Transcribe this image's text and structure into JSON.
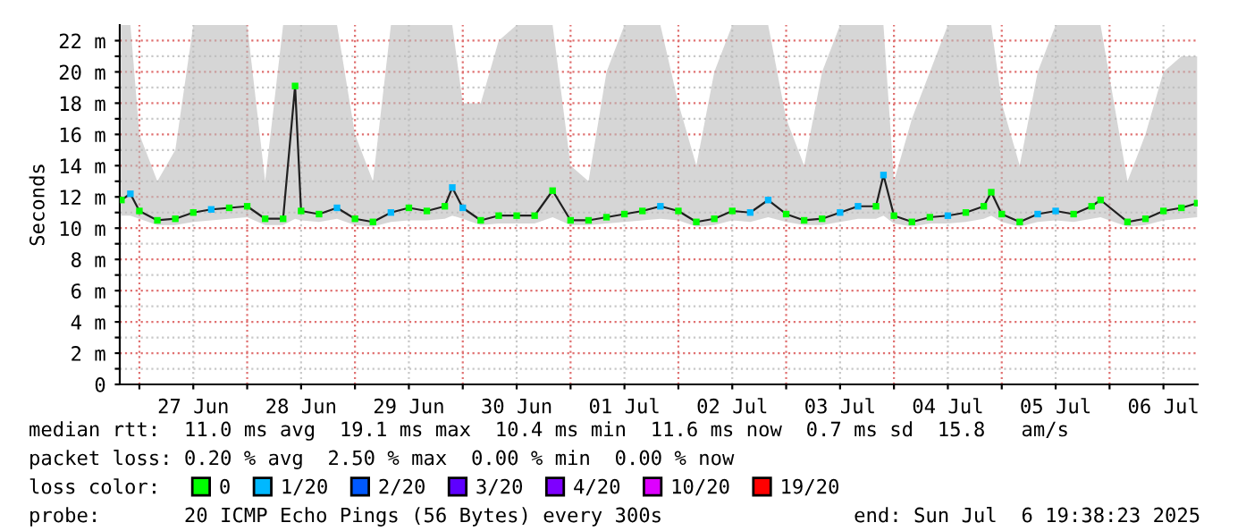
{
  "chart_data": {
    "type": "line",
    "ylabel": "Seconds",
    "x": [
      "2025-06-26T20:00",
      "2025-06-26T22:00",
      "2025-06-27T00:00",
      "2025-06-27T04:00",
      "2025-06-27T08:00",
      "2025-06-27T12:00",
      "2025-06-27T16:00",
      "2025-06-27T20:00",
      "2025-06-28T00:00",
      "2025-06-28T04:00",
      "2025-06-28T08:00",
      "2025-06-28T10:40",
      "2025-06-28T12:00",
      "2025-06-28T16:00",
      "2025-06-28T20:00",
      "2025-06-29T00:00",
      "2025-06-29T04:00",
      "2025-06-29T08:00",
      "2025-06-29T12:00",
      "2025-06-29T16:00",
      "2025-06-29T20:00",
      "2025-06-29T21:40",
      "2025-06-30T00:00",
      "2025-06-30T04:00",
      "2025-06-30T08:00",
      "2025-06-30T12:00",
      "2025-06-30T16:00",
      "2025-06-30T20:00",
      "2025-07-01T00:00",
      "2025-07-01T04:00",
      "2025-07-01T08:00",
      "2025-07-01T12:00",
      "2025-07-01T16:00",
      "2025-07-01T20:00",
      "2025-07-02T00:00",
      "2025-07-02T04:00",
      "2025-07-02T08:00",
      "2025-07-02T12:00",
      "2025-07-02T16:00",
      "2025-07-02T20:00",
      "2025-07-03T00:00",
      "2025-07-03T04:00",
      "2025-07-03T08:00",
      "2025-07-03T12:00",
      "2025-07-03T16:00",
      "2025-07-03T20:00",
      "2025-07-03T21:40",
      "2025-07-04T00:00",
      "2025-07-04T04:00",
      "2025-07-04T08:00",
      "2025-07-04T12:00",
      "2025-07-04T16:00",
      "2025-07-04T20:00",
      "2025-07-04T21:40",
      "2025-07-05T00:00",
      "2025-07-05T04:00",
      "2025-07-05T08:00",
      "2025-07-05T12:00",
      "2025-07-05T16:00",
      "2025-07-05T20:00",
      "2025-07-05T22:00",
      "2025-07-06T04:00",
      "2025-07-06T08:00",
      "2025-07-06T12:00",
      "2025-07-06T16:00",
      "2025-07-06T19:30"
    ],
    "series": [
      {
        "color": "#202020",
        "values": [
          11.8,
          12.2,
          11.1,
          10.5,
          10.6,
          11,
          11.2,
          11.3,
          11.4,
          10.6,
          10.6,
          19.1,
          11.1,
          10.9,
          11.3,
          10.6,
          10.4,
          11,
          11.3,
          11.1,
          11.4,
          12.6,
          11.3,
          10.5,
          10.8,
          10.8,
          10.8,
          12.4,
          10.5,
          10.5,
          10.7,
          10.9,
          11.1,
          11.4,
          11.1,
          10.4,
          10.6,
          11.1,
          11,
          11.8,
          10.9,
          10.5,
          10.6,
          11,
          11.4,
          11.4,
          13.4,
          10.8,
          10.4,
          10.7,
          10.8,
          11,
          11.4,
          12.3,
          10.9,
          10.4,
          10.9,
          11.1,
          10.9,
          11.4,
          11.8,
          10.4,
          10.6,
          11.1,
          11.3,
          11.6
        ],
        "lower": [
          10.8,
          10.8,
          10.6,
          10.2,
          10.2,
          10.4,
          10.5,
          10.6,
          10.7,
          10.2,
          10.2,
          10.6,
          10.5,
          10.4,
          10.6,
          10.2,
          10.1,
          10.4,
          10.5,
          10.5,
          10.6,
          10.8,
          10.6,
          10.2,
          10.3,
          10.3,
          10.3,
          10.7,
          10.2,
          10.2,
          10.3,
          10.4,
          10.5,
          10.6,
          10.5,
          10.1,
          10.2,
          10.5,
          10.4,
          10.7,
          10.4,
          10.2,
          10.2,
          10.4,
          10.6,
          10.6,
          10.8,
          10.3,
          10.1,
          10.3,
          10.3,
          10.4,
          10.6,
          10.8,
          10.4,
          10.1,
          10.4,
          10.5,
          10.4,
          10.6,
          10.7,
          10.1,
          10.2,
          10.5,
          10.6,
          10.7
        ],
        "upper": [
          23,
          23,
          16,
          13,
          15,
          23,
          23,
          23,
          23,
          13,
          23,
          23,
          23,
          23,
          23,
          16,
          13,
          23,
          23,
          23,
          23,
          23,
          18,
          18,
          22,
          23,
          23,
          23,
          14,
          13,
          20,
          23,
          23,
          23,
          18,
          14,
          20,
          23,
          23,
          23,
          17,
          14,
          20,
          23,
          23,
          23,
          23,
          13,
          17,
          20,
          23,
          23,
          23,
          23,
          18,
          14,
          20,
          23,
          23,
          23,
          23,
          13,
          16,
          20,
          21,
          21
        ]
      },
      {
        "name": "0",
        "type": "scatter",
        "marker": "square",
        "color": "#00ff00",
        "values": [
          11.8,
          null,
          11.1,
          10.5,
          10.6,
          11,
          null,
          11.3,
          11.4,
          10.6,
          10.6,
          19.1,
          11.1,
          10.9,
          null,
          10.6,
          10.4,
          null,
          11.3,
          11.1,
          11.4,
          null,
          null,
          10.5,
          10.8,
          10.8,
          10.8,
          12.4,
          10.5,
          10.5,
          10.7,
          10.9,
          11.1,
          null,
          11.1,
          10.4,
          10.6,
          11.1,
          null,
          null,
          10.9,
          10.5,
          10.6,
          null,
          null,
          11.4,
          null,
          10.8,
          10.4,
          10.7,
          null,
          11,
          11.4,
          12.3,
          10.9,
          10.4,
          null,
          null,
          10.9,
          11.4,
          11.8,
          10.4,
          10.6,
          11.1,
          11.3,
          11.6
        ]
      },
      {
        "name": "1/20",
        "type": "scatter",
        "marker": "square",
        "color": "#00b8ff",
        "values": [
          null,
          12.2,
          null,
          null,
          null,
          null,
          11.2,
          null,
          null,
          null,
          null,
          null,
          null,
          null,
          11.3,
          null,
          null,
          11,
          null,
          null,
          null,
          12.6,
          11.3,
          null,
          null,
          null,
          null,
          null,
          null,
          null,
          null,
          null,
          null,
          11.4,
          null,
          null,
          null,
          null,
          11,
          11.8,
          null,
          null,
          null,
          11,
          11.4,
          null,
          13.4,
          null,
          null,
          null,
          10.8,
          null,
          null,
          null,
          null,
          null,
          10.9,
          11.1,
          null,
          null,
          null,
          null,
          null,
          null,
          null,
          null
        ]
      },
      {
        "name": "2/20",
        "type": "scatter",
        "marker": "square",
        "color": "#0059ff",
        "values": [
          null,
          null,
          null,
          null,
          null,
          null,
          null,
          null,
          null,
          null,
          null,
          null,
          null,
          null,
          null,
          null,
          null,
          null,
          null,
          null,
          null,
          null,
          null,
          null,
          null,
          null,
          null,
          null,
          null,
          null,
          null,
          null,
          null,
          null,
          null,
          null,
          null,
          null,
          null,
          null,
          null,
          null,
          null,
          null,
          null,
          null,
          null,
          null,
          null,
          null,
          null,
          null,
          null,
          null,
          null,
          null,
          null,
          null,
          null,
          null,
          null,
          null,
          null,
          null,
          null,
          null
        ]
      },
      {
        "name": "3/20",
        "type": "scatter",
        "marker": "square",
        "color": "#5e00ff",
        "values": [
          null,
          null,
          null,
          null,
          null,
          null,
          null,
          null,
          null,
          null,
          null,
          null,
          null,
          null,
          null,
          null,
          null,
          null,
          null,
          null,
          null,
          null,
          null,
          null,
          null,
          null,
          null,
          null,
          null,
          null,
          null,
          null,
          null,
          null,
          null,
          null,
          null,
          null,
          null,
          null,
          null,
          null,
          null,
          null,
          null,
          null,
          null,
          null,
          null,
          null,
          null,
          null,
          null,
          null,
          null,
          null,
          null,
          null,
          null,
          null,
          null,
          null,
          null,
          null,
          null,
          null
        ]
      },
      {
        "name": "4/20",
        "type": "scatter",
        "marker": "square",
        "color": "#7e00ff",
        "values": [
          null,
          null,
          null,
          null,
          null,
          null,
          null,
          null,
          null,
          null,
          null,
          null,
          null,
          null,
          null,
          null,
          null,
          null,
          null,
          null,
          null,
          null,
          null,
          null,
          null,
          null,
          null,
          null,
          null,
          null,
          null,
          null,
          null,
          null,
          null,
          null,
          null,
          null,
          null,
          null,
          null,
          null,
          null,
          null,
          null,
          null,
          null,
          null,
          null,
          null,
          null,
          null,
          null,
          null,
          null,
          null,
          null,
          null,
          null,
          null,
          null,
          null,
          null,
          null,
          null,
          null
        ]
      },
      {
        "name": "10/20",
        "type": "scatter",
        "marker": "square",
        "color": "#dd00ff",
        "values": [
          null,
          null,
          null,
          null,
          null,
          null,
          null,
          null,
          null,
          null,
          null,
          null,
          null,
          null,
          null,
          null,
          null,
          null,
          null,
          null,
          null,
          null,
          null,
          null,
          null,
          null,
          null,
          null,
          null,
          null,
          null,
          null,
          null,
          null,
          null,
          null,
          null,
          null,
          null,
          null,
          null,
          null,
          null,
          null,
          null,
          null,
          null,
          null,
          null,
          null,
          null,
          null,
          null,
          null,
          null,
          null,
          null,
          null,
          null,
          null,
          null,
          null,
          null,
          null,
          null,
          null
        ]
      },
      {
        "name": "19/20",
        "type": "scatter",
        "marker": "square",
        "color": "#ff0000",
        "values": [
          null,
          null,
          null,
          null,
          null,
          null,
          null,
          null,
          null,
          null,
          null,
          null,
          null,
          null,
          null,
          null,
          null,
          null,
          null,
          null,
          null,
          null,
          null,
          null,
          null,
          null,
          null,
          null,
          null,
          null,
          null,
          null,
          null,
          null,
          null,
          null,
          null,
          null,
          null,
          null,
          null,
          null,
          null,
          null,
          null,
          null,
          null,
          null,
          null,
          null,
          null,
          null,
          null,
          null,
          null,
          null,
          null,
          null,
          null,
          null,
          null,
          null,
          null,
          null,
          null,
          null
        ]
      }
    ],
    "legend_title": "loss color:",
    "legend": "bottom",
    "marker": "none",
    "grid": true,
    "xlim": [
      "2025-06-26T19:38",
      "2025-07-06T19:38"
    ],
    "xticks": [
      {
        "value": "2025-06-27T00:00",
        "label": null
      },
      {
        "value": "2025-06-27T12:00",
        "label": "27 Jun"
      },
      {
        "value": "2025-06-28T00:00",
        "label": null
      },
      {
        "value": "2025-06-28T12:00",
        "label": "28 Jun"
      },
      {
        "value": "2025-06-29T00:00",
        "label": null
      },
      {
        "value": "2025-06-29T12:00",
        "label": "29 Jun"
      },
      {
        "value": "2025-06-30T00:00",
        "label": null
      },
      {
        "value": "2025-06-30T12:00",
        "label": "30 Jun"
      },
      {
        "value": "2025-07-01T00:00",
        "label": null
      },
      {
        "value": "2025-07-01T12:00",
        "label": "01 Jul"
      },
      {
        "value": "2025-07-02T00:00",
        "label": null
      },
      {
        "value": "2025-07-02T12:00",
        "label": "02 Jul"
      },
      {
        "value": "2025-07-03T00:00",
        "label": null
      },
      {
        "value": "2025-07-03T12:00",
        "label": "03 Jul"
      },
      {
        "value": "2025-07-04T00:00",
        "label": null
      },
      {
        "value": "2025-07-04T12:00",
        "label": "04 Jul"
      },
      {
        "value": "2025-07-05T00:00",
        "label": null
      },
      {
        "value": "2025-07-05T12:00",
        "label": "05 Jul"
      },
      {
        "value": "2025-07-06T00:00",
        "label": null
      },
      {
        "value": "2025-07-06T12:00",
        "label": "06 Jul"
      }
    ],
    "ylim": [
      0,
      23
    ],
    "yticks": [
      0,
      {
        "value": 1,
        "label": null
      },
      {
        "value": 2,
        "label": "2 m"
      },
      {
        "value": 3,
        "label": null
      },
      {
        "value": 4,
        "label": "4 m"
      },
      {
        "value": 5,
        "label": null
      },
      {
        "value": 6,
        "label": "6 m"
      },
      {
        "value": 7,
        "label": null
      },
      {
        "value": 8,
        "label": "8 m"
      },
      {
        "value": 9,
        "label": null
      },
      {
        "value": 10,
        "label": "10 m"
      },
      {
        "value": 11,
        "label": null
      },
      {
        "value": 12,
        "label": "12 m"
      },
      {
        "value": 13,
        "label": null
      },
      {
        "value": 14,
        "label": "14 m"
      },
      {
        "value": 15,
        "label": null
      },
      {
        "value": 16,
        "label": "16 m"
      },
      {
        "value": 17,
        "label": null
      },
      {
        "value": 18,
        "label": "18 m"
      },
      {
        "value": 19,
        "label": null
      },
      {
        "value": 20,
        "label": "20 m"
      },
      {
        "value": 21,
        "label": null
      },
      {
        "value": 22,
        "label": "22 m"
      }
    ],
    "annotations": [
      "median rtt:  11.0 ms avg  19.1 ms max  10.4 ms min  11.6 ms now  0.7 ms sd  15.8   am/s",
      "packet loss: 0.20 % avg  2.50 % max  0.00 % min  0.00 % now",
      "probe:       20 ICMP Echo Pings (56 Bytes) every 300s                end: Sun Jul  6 19:38:23 2025"
    ]
  }
}
